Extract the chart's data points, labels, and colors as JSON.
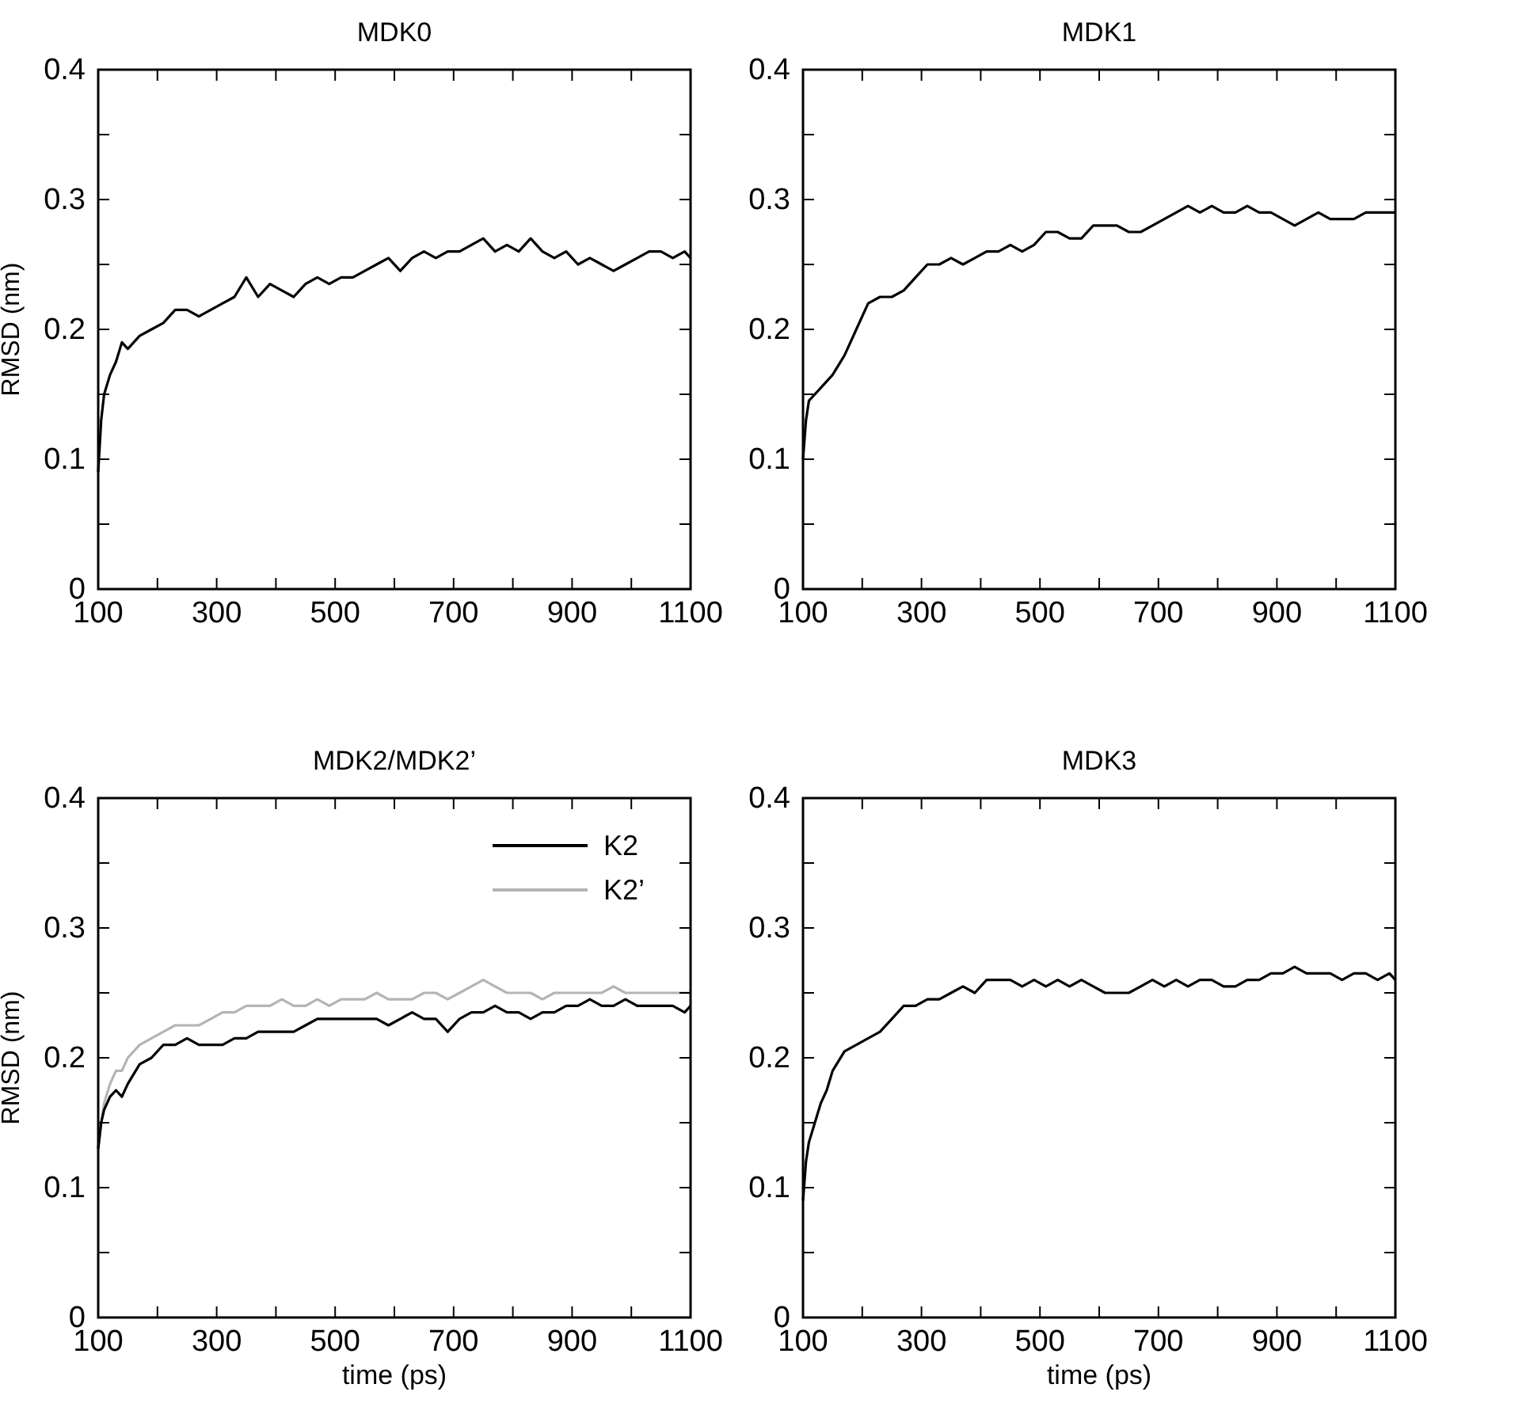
{
  "chart_data": [
    {
      "type": "line",
      "title": "MDK0",
      "ylabel": "RMSD (nm)",
      "xlim": [
        100,
        1100
      ],
      "ylim": [
        0,
        0.4
      ],
      "xticks": [
        100,
        {
          "value": 200,
          "label": null
        },
        300,
        {
          "value": 400,
          "label": null
        },
        500,
        {
          "value": 600,
          "label": null
        },
        700,
        {
          "value": 800,
          "label": null
        },
        900,
        {
          "value": 1000,
          "label": null
        },
        1100
      ],
      "yticks": [
        0,
        {
          "value": 0.05,
          "label": null
        },
        0.1,
        {
          "value": 0.15,
          "label": null
        },
        0.2,
        {
          "value": 0.25,
          "label": null
        },
        0.3,
        {
          "value": 0.35,
          "label": null
        },
        0.4
      ],
      "x": [
        100,
        105,
        110,
        120,
        130,
        140,
        150,
        170,
        190,
        210,
        230,
        250,
        270,
        290,
        310,
        330,
        350,
        370,
        390,
        410,
        430,
        450,
        470,
        490,
        510,
        530,
        550,
        570,
        590,
        610,
        630,
        650,
        670,
        690,
        710,
        730,
        750,
        770,
        790,
        810,
        830,
        850,
        870,
        890,
        910,
        930,
        950,
        970,
        990,
        1010,
        1030,
        1050,
        1070,
        1090,
        1100
      ],
      "series": [
        {
          "color": "#000000",
          "values": [
            0.09,
            0.13,
            0.15,
            0.165,
            0.175,
            0.19,
            0.185,
            0.195,
            0.2,
            0.205,
            0.215,
            0.215,
            0.21,
            0.215,
            0.22,
            0.225,
            0.24,
            0.225,
            0.235,
            0.23,
            0.225,
            0.235,
            0.24,
            0.235,
            0.24,
            0.24,
            0.245,
            0.25,
            0.255,
            0.245,
            0.255,
            0.26,
            0.255,
            0.26,
            0.26,
            0.265,
            0.27,
            0.26,
            0.265,
            0.26,
            0.27,
            0.26,
            0.255,
            0.26,
            0.25,
            0.255,
            0.25,
            0.245,
            0.25,
            0.255,
            0.26,
            0.26,
            0.255,
            0.26,
            0.255
          ]
        }
      ]
    },
    {
      "type": "line",
      "title": "MDK1",
      "xlim": [
        100,
        1100
      ],
      "ylim": [
        0,
        0.4
      ],
      "xticks": [
        100,
        {
          "value": 200,
          "label": null
        },
        300,
        {
          "value": 400,
          "label": null
        },
        500,
        {
          "value": 600,
          "label": null
        },
        700,
        {
          "value": 800,
          "label": null
        },
        900,
        {
          "value": 1000,
          "label": null
        },
        1100
      ],
      "yticks": [
        0,
        {
          "value": 0.05,
          "label": null
        },
        0.1,
        {
          "value": 0.15,
          "label": null
        },
        0.2,
        {
          "value": 0.25,
          "label": null
        },
        0.3,
        {
          "value": 0.35,
          "label": null
        },
        0.4
      ],
      "x": [
        100,
        105,
        110,
        120,
        130,
        140,
        150,
        170,
        190,
        210,
        230,
        250,
        270,
        290,
        310,
        330,
        350,
        370,
        390,
        410,
        430,
        450,
        470,
        490,
        510,
        530,
        550,
        570,
        590,
        610,
        630,
        650,
        670,
        690,
        710,
        730,
        750,
        770,
        790,
        810,
        830,
        850,
        870,
        890,
        910,
        930,
        950,
        970,
        990,
        1010,
        1030,
        1050,
        1070,
        1090,
        1100
      ],
      "series": [
        {
          "color": "#000000",
          "values": [
            0.1,
            0.13,
            0.145,
            0.15,
            0.155,
            0.16,
            0.165,
            0.18,
            0.2,
            0.22,
            0.225,
            0.225,
            0.23,
            0.24,
            0.25,
            0.25,
            0.255,
            0.25,
            0.255,
            0.26,
            0.26,
            0.265,
            0.26,
            0.265,
            0.275,
            0.275,
            0.27,
            0.27,
            0.28,
            0.28,
            0.28,
            0.275,
            0.275,
            0.28,
            0.285,
            0.29,
            0.295,
            0.29,
            0.295,
            0.29,
            0.29,
            0.295,
            0.29,
            0.29,
            0.285,
            0.28,
            0.285,
            0.29,
            0.285,
            0.285,
            0.285,
            0.29,
            0.29,
            0.29,
            0.29
          ]
        }
      ]
    },
    {
      "type": "line",
      "title": "MDK2/MDK2’",
      "xlabel": "time (ps)",
      "ylabel": "RMSD (nm)",
      "legend": "top right",
      "xlim": [
        100,
        1100
      ],
      "ylim": [
        0,
        0.4
      ],
      "xticks": [
        100,
        {
          "value": 200,
          "label": null
        },
        300,
        {
          "value": 400,
          "label": null
        },
        500,
        {
          "value": 600,
          "label": null
        },
        700,
        {
          "value": 800,
          "label": null
        },
        900,
        {
          "value": 1000,
          "label": null
        },
        1100
      ],
      "yticks": [
        0,
        {
          "value": 0.05,
          "label": null
        },
        0.1,
        {
          "value": 0.15,
          "label": null
        },
        0.2,
        {
          "value": 0.25,
          "label": null
        },
        0.3,
        {
          "value": 0.35,
          "label": null
        },
        0.4
      ],
      "x": [
        100,
        105,
        110,
        120,
        130,
        140,
        150,
        170,
        190,
        210,
        230,
        250,
        270,
        290,
        310,
        330,
        350,
        370,
        390,
        410,
        430,
        450,
        470,
        490,
        510,
        530,
        550,
        570,
        590,
        610,
        630,
        650,
        670,
        690,
        710,
        730,
        750,
        770,
        790,
        810,
        830,
        850,
        870,
        890,
        910,
        930,
        950,
        970,
        990,
        1010,
        1030,
        1050,
        1070,
        1090,
        1100
      ],
      "series": [
        {
          "name": "K2’",
          "color": "#b4b4b4",
          "values": [
            0.13,
            0.15,
            0.165,
            0.18,
            0.19,
            0.19,
            0.2,
            0.21,
            0.215,
            0.22,
            0.225,
            0.225,
            0.225,
            0.23,
            0.235,
            0.235,
            0.24,
            0.24,
            0.24,
            0.245,
            0.24,
            0.24,
            0.245,
            0.24,
            0.245,
            0.245,
            0.245,
            0.25,
            0.245,
            0.245,
            0.245,
            0.25,
            0.25,
            0.245,
            0.25,
            0.255,
            0.26,
            0.255,
            0.25,
            0.25,
            0.25,
            0.245,
            0.25,
            0.25,
            0.25,
            0.25,
            0.25,
            0.255,
            0.25,
            0.25,
            0.25,
            0.25,
            0.25,
            0.25,
            0.25
          ]
        },
        {
          "name": "K2",
          "color": "#000000",
          "values": [
            0.13,
            0.15,
            0.16,
            0.17,
            0.175,
            0.17,
            0.18,
            0.195,
            0.2,
            0.21,
            0.21,
            0.215,
            0.21,
            0.21,
            0.21,
            0.215,
            0.215,
            0.22,
            0.22,
            0.22,
            0.22,
            0.225,
            0.23,
            0.23,
            0.23,
            0.23,
            0.23,
            0.23,
            0.225,
            0.23,
            0.235,
            0.23,
            0.23,
            0.22,
            0.23,
            0.235,
            0.235,
            0.24,
            0.235,
            0.235,
            0.23,
            0.235,
            0.235,
            0.24,
            0.24,
            0.245,
            0.24,
            0.24,
            0.245,
            0.24,
            0.24,
            0.24,
            0.24,
            0.235,
            0.24
          ]
        }
      ]
    },
    {
      "type": "line",
      "title": "MDK3",
      "xlabel": "time (ps)",
      "xlim": [
        100,
        1100
      ],
      "ylim": [
        0,
        0.4
      ],
      "xticks": [
        100,
        {
          "value": 200,
          "label": null
        },
        300,
        {
          "value": 400,
          "label": null
        },
        500,
        {
          "value": 600,
          "label": null
        },
        700,
        {
          "value": 800,
          "label": null
        },
        900,
        {
          "value": 1000,
          "label": null
        },
        1100
      ],
      "yticks": [
        0,
        {
          "value": 0.05,
          "label": null
        },
        0.1,
        {
          "value": 0.15,
          "label": null
        },
        0.2,
        {
          "value": 0.25,
          "label": null
        },
        0.3,
        {
          "value": 0.35,
          "label": null
        },
        0.4
      ],
      "x": [
        100,
        105,
        110,
        120,
        130,
        140,
        150,
        170,
        190,
        210,
        230,
        250,
        270,
        290,
        310,
        330,
        350,
        370,
        390,
        410,
        430,
        450,
        470,
        490,
        510,
        530,
        550,
        570,
        590,
        610,
        630,
        650,
        670,
        690,
        710,
        730,
        750,
        770,
        790,
        810,
        830,
        850,
        870,
        890,
        910,
        930,
        950,
        970,
        990,
        1010,
        1030,
        1050,
        1070,
        1090,
        1100
      ],
      "series": [
        {
          "color": "#000000",
          "values": [
            0.09,
            0.12,
            0.135,
            0.15,
            0.165,
            0.175,
            0.19,
            0.205,
            0.21,
            0.215,
            0.22,
            0.23,
            0.24,
            0.24,
            0.245,
            0.245,
            0.25,
            0.255,
            0.25,
            0.26,
            0.26,
            0.26,
            0.255,
            0.26,
            0.255,
            0.26,
            0.255,
            0.26,
            0.255,
            0.25,
            0.25,
            0.25,
            0.255,
            0.26,
            0.255,
            0.26,
            0.255,
            0.26,
            0.26,
            0.255,
            0.255,
            0.26,
            0.26,
            0.265,
            0.265,
            0.27,
            0.265,
            0.265,
            0.265,
            0.26,
            0.265,
            0.265,
            0.26,
            0.265,
            0.26
          ]
        }
      ]
    }
  ]
}
